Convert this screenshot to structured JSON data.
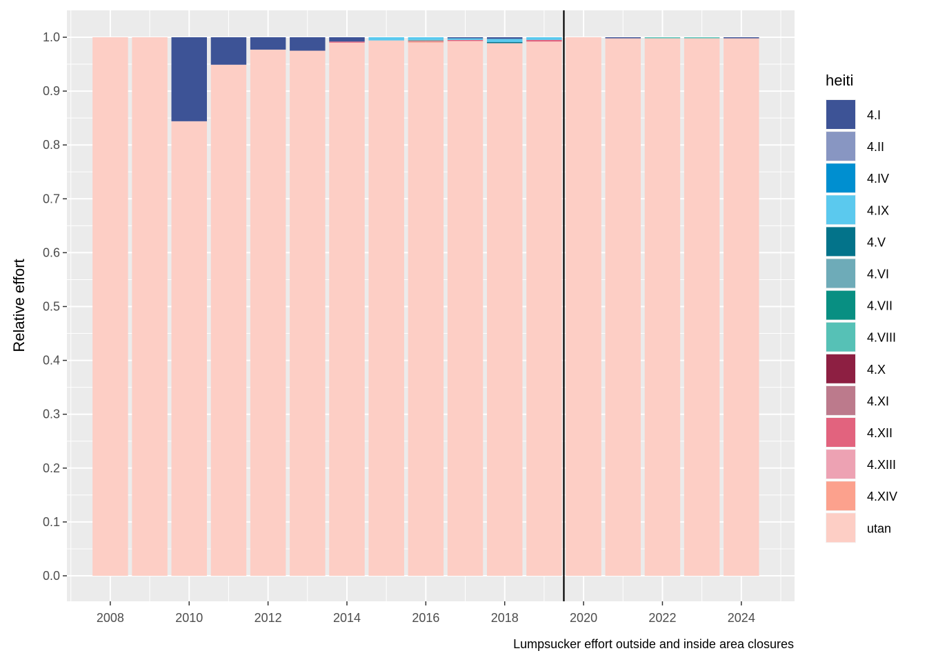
{
  "chart_data": {
    "type": "bar",
    "stacked": true,
    "ylabel": "Relative effort",
    "xlabel": "",
    "caption": "Lumpsucker effort outside and inside area closures",
    "ylim": [
      0,
      1.0
    ],
    "xlim": [
      2006.9,
      2025.35
    ],
    "y_ticks": [
      0.0,
      0.1,
      0.2,
      0.3,
      0.4,
      0.5,
      0.6,
      0.7,
      0.8,
      0.9,
      1.0
    ],
    "y_tick_labels": [
      "0.0",
      "0.1",
      "0.2",
      "0.3",
      "0.4",
      "0.5",
      "0.6",
      "0.7",
      "0.8",
      "0.9",
      "1.0"
    ],
    "x_ticks": [
      2008,
      2010,
      2012,
      2014,
      2016,
      2018,
      2020,
      2022,
      2024
    ],
    "x_tick_labels": [
      "2008",
      "2010",
      "2012",
      "2014",
      "2016",
      "2018",
      "2020",
      "2022",
      "2024"
    ],
    "grid": true,
    "vline_x": 2019.5,
    "legend": {
      "title": "heiti",
      "position": "right",
      "entries": [
        {
          "label": "4.I",
          "color": "#3d5396"
        },
        {
          "label": "4.II",
          "color": "#8896c2"
        },
        {
          "label": "4.IV",
          "color": "#008fd0"
        },
        {
          "label": "4.IX",
          "color": "#5bc9ee"
        },
        {
          "label": "4.V",
          "color": "#03738a"
        },
        {
          "label": "4.VI",
          "color": "#6eabb8"
        },
        {
          "label": "4.VII",
          "color": "#088f82"
        },
        {
          "label": "4.VIII",
          "color": "#56c1b6"
        },
        {
          "label": "4.X",
          "color": "#8d1f42"
        },
        {
          "label": "4.XI",
          "color": "#bc7a8c"
        },
        {
          "label": "4.XII",
          "color": "#e2637e"
        },
        {
          "label": "4.XIII",
          "color": "#eda2b3"
        },
        {
          "label": "4.XIV",
          "color": "#fca18d"
        },
        {
          "label": "utan",
          "color": "#fdcec5"
        }
      ]
    },
    "x": [
      2008,
      2009,
      2010,
      2011,
      2012,
      2013,
      2014,
      2015,
      2016,
      2017,
      2018,
      2019,
      2020,
      2021,
      2022,
      2023,
      2024
    ],
    "stacks": [
      {
        "x": 2008,
        "segments": [
          {
            "series": "utan",
            "value": 1.0
          }
        ]
      },
      {
        "x": 2009,
        "segments": [
          {
            "series": "utan",
            "value": 1.0
          }
        ]
      },
      {
        "x": 2010,
        "segments": [
          {
            "series": "utan",
            "value": 0.844
          },
          {
            "series": "4.I",
            "value": 0.156
          }
        ]
      },
      {
        "x": 2011,
        "segments": [
          {
            "series": "utan",
            "value": 0.949
          },
          {
            "series": "4.I",
            "value": 0.051
          }
        ]
      },
      {
        "x": 2012,
        "segments": [
          {
            "series": "utan",
            "value": 0.977
          },
          {
            "series": "4.I",
            "value": 0.023
          }
        ]
      },
      {
        "x": 2013,
        "segments": [
          {
            "series": "utan",
            "value": 0.975
          },
          {
            "series": "4.I",
            "value": 0.025
          }
        ]
      },
      {
        "x": 2014,
        "segments": [
          {
            "series": "utan",
            "value": 0.99
          },
          {
            "series": "4.XII",
            "value": 0.002
          },
          {
            "series": "4.I",
            "value": 0.008
          }
        ]
      },
      {
        "x": 2015,
        "segments": [
          {
            "series": "utan",
            "value": 0.994
          },
          {
            "series": "4.IX",
            "value": 0.006
          }
        ]
      },
      {
        "x": 2016,
        "segments": [
          {
            "series": "utan",
            "value": 0.99
          },
          {
            "series": "4.XIV",
            "value": 0.002
          },
          {
            "series": "4.XI",
            "value": 0.002
          },
          {
            "series": "4.VIII",
            "value": 0.001
          },
          {
            "series": "4.IX",
            "value": 0.005
          }
        ]
      },
      {
        "x": 2017,
        "segments": [
          {
            "series": "utan",
            "value": 0.993
          },
          {
            "series": "4.XII",
            "value": 0.002
          },
          {
            "series": "4.IX",
            "value": 0.003
          },
          {
            "series": "4.I",
            "value": 0.002
          }
        ]
      },
      {
        "x": 2018,
        "segments": [
          {
            "series": "utan",
            "value": 0.989
          },
          {
            "series": "4.V",
            "value": 0.002
          },
          {
            "series": "4.IX",
            "value": 0.006
          },
          {
            "series": "4.I",
            "value": 0.003
          }
        ]
      },
      {
        "x": 2019,
        "segments": [
          {
            "series": "utan",
            "value": 0.992
          },
          {
            "series": "4.XII",
            "value": 0.003
          },
          {
            "series": "4.IX",
            "value": 0.005
          }
        ]
      },
      {
        "x": 2020,
        "segments": [
          {
            "series": "utan",
            "value": 1.0
          }
        ]
      },
      {
        "x": 2021,
        "segments": [
          {
            "series": "utan",
            "value": 0.998
          },
          {
            "series": "4.I",
            "value": 0.002
          }
        ]
      },
      {
        "x": 2022,
        "segments": [
          {
            "series": "utan",
            "value": 0.998
          },
          {
            "series": "4.VIII",
            "value": 0.002
          }
        ]
      },
      {
        "x": 2023,
        "segments": [
          {
            "series": "utan",
            "value": 0.998
          },
          {
            "series": "4.VIII",
            "value": 0.002
          }
        ]
      },
      {
        "x": 2024,
        "segments": [
          {
            "series": "utan",
            "value": 0.998
          },
          {
            "series": "4.I",
            "value": 0.002
          }
        ]
      }
    ]
  }
}
